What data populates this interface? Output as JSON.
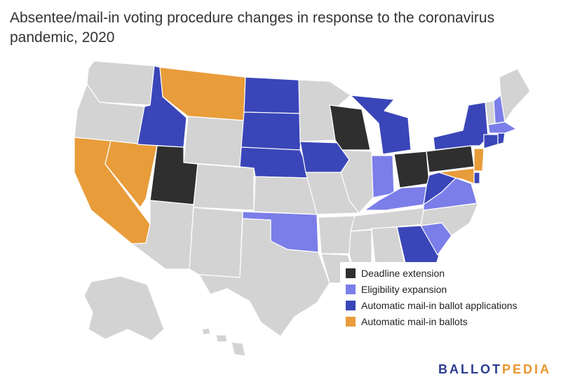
{
  "title": "Absentee/mail-in voting procedure changes in response to the coronavirus pandemic, 2020",
  "colors": {
    "background_state": "#d3d3d3",
    "deadline_extension": "#2f2f2f",
    "eligibility_expansion": "#7b7ee8",
    "automatic_applications": "#3a46b8",
    "automatic_ballots": "#e89c3a"
  },
  "legend": [
    {
      "label": "Deadline extension",
      "category": "deadline_extension"
    },
    {
      "label": "Eligibility expansion",
      "category": "eligibility_expansion"
    },
    {
      "label": "Automatic mail-in ballot applications",
      "category": "automatic_applications"
    },
    {
      "label": "Automatic mail-in ballots",
      "category": "automatic_ballots"
    }
  ],
  "states": {
    "WA": "none",
    "OR": "none",
    "CA": "automatic_ballots",
    "NV": "automatic_ballots",
    "ID": "automatic_applications",
    "MT": "automatic_ballots",
    "WY": "none",
    "UT": "deadline_extension",
    "AZ": "none",
    "CO": "none",
    "NM": "none",
    "ND": "automatic_applications",
    "SD": "automatic_applications",
    "NE": "automatic_applications",
    "KS": "none",
    "OK": "eligibility_expansion",
    "TX": "none",
    "MN": "none",
    "IA": "automatic_applications",
    "MO": "none",
    "AR": "none",
    "LA": "none",
    "WI": "deadline_extension",
    "IL": "none",
    "MI": "automatic_applications",
    "IN": "eligibility_expansion",
    "OH": "deadline_extension",
    "KY": "eligibility_expansion",
    "TN": "none",
    "MS": "none",
    "AL": "none",
    "GA": "automatic_applications",
    "FL": "none",
    "SC": "eligibility_expansion",
    "NC": "none",
    "VA": "eligibility_expansion",
    "WV": "automatic_applications",
    "PA": "deadline_extension",
    "NY": "automatic_applications",
    "VT": "none",
    "NH": "eligibility_expansion",
    "ME": "none",
    "MA": "eligibility_expansion",
    "CT": "automatic_applications",
    "RI": "automatic_applications",
    "NJ": "automatic_ballots",
    "DE": "automatic_applications",
    "MD": "automatic_ballots",
    "AK": "none",
    "HI": "none"
  },
  "logo": {
    "part1": "BALLOT",
    "part2": "PEDIA"
  }
}
